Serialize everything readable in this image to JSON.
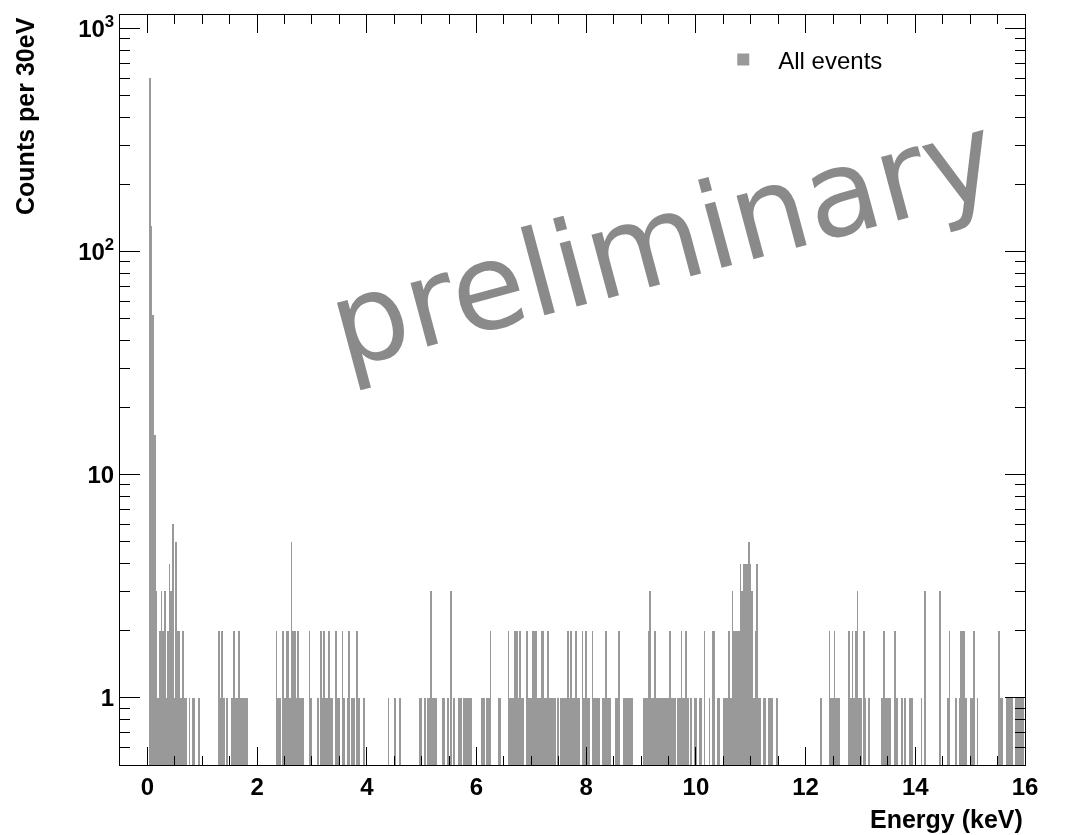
{
  "chart_data": {
    "type": "histogram",
    "xlabel": "Energy (keV)",
    "ylabel": "Counts per 30eV",
    "annotations": [
      "preliminary"
    ],
    "legend": "top right",
    "log": "y",
    "xlim": [
      -0.5,
      16
    ],
    "xticks": [
      0,
      2,
      4,
      6,
      8,
      10,
      12,
      14,
      16
    ],
    "ylim": [
      0.5,
      1150
    ],
    "yticks": [
      1,
      10,
      {
        "value": 100,
        "label": "10$^{2}$"
      },
      {
        "value": 1000,
        "label": "10$^{3}$"
      }
    ],
    "bins": [
      0,
      0.03,
      0.06,
      0.09,
      0.12,
      0.15,
      0.18,
      0.21,
      0.24,
      0.27,
      0.3,
      0.33,
      0.36,
      0.39,
      0.42,
      0.45,
      0.48,
      0.51,
      0.54,
      0.57,
      0.6,
      0.63,
      0.66,
      0.69,
      0.72,
      0.75,
      0.78,
      0.81,
      0.84,
      0.87,
      0.9,
      0.93,
      0.96,
      0.99,
      1.02,
      1.05,
      1.08,
      1.11,
      1.14,
      1.17,
      1.2,
      1.23,
      1.26,
      1.29,
      1.32,
      1.35,
      1.38,
      1.41,
      1.44,
      1.47,
      1.5,
      1.53,
      1.56,
      1.59,
      1.62,
      1.65,
      1.68,
      1.71,
      1.74,
      1.77,
      1.8,
      1.83,
      1.86,
      1.89,
      1.92,
      1.95,
      1.98,
      2.01,
      2.04,
      2.07,
      2.1,
      2.13,
      2.16,
      2.19,
      2.22,
      2.25,
      2.28,
      2.31,
      2.34,
      2.37,
      2.4,
      2.43,
      2.46,
      2.49,
      2.52,
      2.55,
      2.58,
      2.61,
      2.64,
      2.67,
      2.7,
      2.73,
      2.76,
      2.79,
      2.82,
      2.85,
      2.88,
      2.91,
      2.94,
      2.97,
      3.0,
      3.03,
      3.06,
      3.09,
      3.12,
      3.15,
      3.18,
      3.21,
      3.24,
      3.27,
      3.3,
      3.33,
      3.36,
      3.39,
      3.42,
      3.45,
      3.48,
      3.51,
      3.54,
      3.57,
      3.6,
      3.63,
      3.66,
      3.69,
      3.72,
      3.75,
      3.78,
      3.81,
      3.84,
      3.87,
      3.9,
      3.93,
      3.96,
      3.99,
      4.02,
      4.05,
      4.08,
      4.11,
      4.14,
      4.17,
      4.2,
      4.23,
      4.26,
      4.29,
      4.32,
      4.35,
      4.38,
      4.41,
      4.44,
      4.47,
      4.5,
      4.53,
      4.56,
      4.59,
      4.62,
      4.65,
      4.68,
      4.71,
      4.74,
      4.77,
      4.8,
      4.83,
      4.86,
      4.89,
      4.92,
      4.95,
      4.98,
      5.01,
      5.04,
      5.07,
      5.1,
      5.13,
      5.16,
      5.19,
      5.22,
      5.25,
      5.28,
      5.31,
      5.34,
      5.37,
      5.4,
      5.43,
      5.46,
      5.49,
      5.52,
      5.55,
      5.58,
      5.61,
      5.64,
      5.67,
      5.7,
      5.73,
      5.76,
      5.79,
      5.82,
      5.85,
      5.88,
      5.91,
      5.94,
      5.97,
      6.0,
      6.03,
      6.06,
      6.09,
      6.12,
      6.15,
      6.18,
      6.21,
      6.24,
      6.27,
      6.3,
      6.33,
      6.36,
      6.39,
      6.42,
      6.45,
      6.48,
      6.51,
      6.54,
      6.57,
      6.6,
      6.63,
      6.66,
      6.69,
      6.72,
      6.75,
      6.78,
      6.81,
      6.84,
      6.87,
      6.9,
      6.93,
      6.96,
      6.99,
      7.02,
      7.05,
      7.08,
      7.11,
      7.14,
      7.17,
      7.2,
      7.23,
      7.26,
      7.29,
      7.32,
      7.35,
      7.38,
      7.41,
      7.44,
      7.47,
      7.5,
      7.53,
      7.56,
      7.59,
      7.62,
      7.65,
      7.68,
      7.71,
      7.74,
      7.77,
      7.8,
      7.83,
      7.86,
      7.89,
      7.92,
      7.95,
      7.98,
      8.01,
      8.04,
      8.07,
      8.1,
      8.13,
      8.16,
      8.19,
      8.22,
      8.25,
      8.28,
      8.31,
      8.34,
      8.37,
      8.4,
      8.43,
      8.46,
      8.49,
      8.52,
      8.55,
      8.58,
      8.61,
      8.64,
      8.67,
      8.7,
      8.73,
      8.76,
      8.79,
      8.82,
      8.85,
      8.88,
      8.91,
      8.94,
      8.97,
      9.0,
      9.03,
      9.06,
      9.09,
      9.12,
      9.15,
      9.18,
      9.21,
      9.24,
      9.27,
      9.3,
      9.33,
      9.36,
      9.39,
      9.42,
      9.45,
      9.48,
      9.51,
      9.54,
      9.57,
      9.6,
      9.63,
      9.66,
      9.69,
      9.72,
      9.75,
      9.78,
      9.81,
      9.84,
      9.87,
      9.9,
      9.93,
      9.96,
      9.99,
      10.02,
      10.05,
      10.08,
      10.11,
      10.14,
      10.17,
      10.2,
      10.23,
      10.26,
      10.29,
      10.32,
      10.35,
      10.38,
      10.41,
      10.44,
      10.47,
      10.5,
      10.53,
      10.56,
      10.59,
      10.62,
      10.65,
      10.68,
      10.71,
      10.74,
      10.77,
      10.8,
      10.83,
      10.86,
      10.89,
      10.92,
      10.95,
      10.98,
      11.01,
      11.04,
      11.07,
      11.1,
      11.13,
      11.16,
      11.19,
      11.22,
      11.25,
      11.28,
      11.31,
      11.34,
      11.37,
      11.4,
      11.43,
      11.46,
      11.49,
      11.52,
      11.55,
      11.58,
      11.61,
      11.64,
      11.67,
      11.7,
      11.73,
      11.76,
      11.79,
      11.82,
      11.85,
      11.88,
      11.91,
      11.94,
      11.97,
      12.0,
      12.03,
      12.06,
      12.09,
      12.12,
      12.15,
      12.18,
      12.21,
      12.24,
      12.27,
      12.3,
      12.33,
      12.36,
      12.39,
      12.42,
      12.45,
      12.48,
      12.51,
      12.54,
      12.57,
      12.6,
      12.63,
      12.66,
      12.69,
      12.72,
      12.75,
      12.78,
      12.81,
      12.84,
      12.87,
      12.9,
      12.93,
      12.96,
      12.99,
      13.02,
      13.05,
      13.08,
      13.11,
      13.14,
      13.17,
      13.2,
      13.23,
      13.26,
      13.29,
      13.32,
      13.35,
      13.38,
      13.41,
      13.44,
      13.47,
      13.5,
      13.53,
      13.56,
      13.59,
      13.62,
      13.65,
      13.68,
      13.71,
      13.74,
      13.77,
      13.8,
      13.83,
      13.86,
      13.89,
      13.92,
      13.95,
      13.98,
      14.01,
      14.04,
      14.07,
      14.1,
      14.13,
      14.16,
      14.19,
      14.22,
      14.25,
      14.28,
      14.31,
      14.34,
      14.37,
      14.4,
      14.43,
      14.46,
      14.49,
      14.52,
      14.55,
      14.58,
      14.61,
      14.64,
      14.67,
      14.7,
      14.73,
      14.76,
      14.79,
      14.82,
      14.85,
      14.88,
      14.91,
      14.94,
      14.97,
      15.0,
      15.03,
      15.06,
      15.09,
      15.12,
      15.15,
      15.18,
      15.21,
      15.24,
      15.27,
      15.3,
      15.33,
      15.36,
      15.39,
      15.42,
      15.45,
      15.48,
      15.51,
      15.54,
      15.57,
      15.6,
      15.63,
      15.66,
      15.69,
      15.72,
      15.75,
      15.78,
      15.81,
      15.84,
      15.87,
      15.9,
      15.93,
      15.96,
      15.99
    ],
    "series": [
      {
        "name": "All events",
        "color": "#999999",
        "values": [
          null,
          600,
          130,
          52,
          15,
          3,
          1,
          2,
          3,
          2,
          3,
          1,
          2,
          4,
          3,
          6,
          1,
          5,
          2,
          2,
          1,
          2,
          1,
          1,
          null,
          1,
          null,
          1,
          1,
          null,
          null,
          1,
          null,
          null,
          null,
          null,
          null,
          null,
          null,
          null,
          null,
          null,
          null,
          2,
          1,
          2,
          1,
          null,
          1,
          null,
          null,
          1,
          2,
          1,
          1,
          2,
          1,
          1,
          1,
          1,
          1,
          null,
          null,
          null,
          null,
          null,
          null,
          null,
          null,
          null,
          null,
          null,
          null,
          null,
          null,
          null,
          null,
          null,
          2,
          1,
          1,
          null,
          2,
          1,
          2,
          2,
          1,
          5,
          2,
          2,
          1,
          2,
          1,
          1,
          1,
          null,
          null,
          null,
          2,
          1,
          null,
          null,
          null,
          1,
          null,
          2,
          1,
          2,
          1,
          1,
          2,
          1,
          1,
          null,
          2,
          1,
          1,
          null,
          2,
          1,
          null,
          1,
          2,
          null,
          1,
          1,
          null,
          2,
          1,
          null,
          null,
          1,
          null,
          null,
          null,
          null,
          null,
          null,
          null,
          null,
          null,
          null,
          null,
          null,
          null,
          null,
          1,
          null,
          null,
          null,
          1,
          null,
          null,
          1,
          null,
          null,
          null,
          null,
          null,
          null,
          null,
          null,
          null,
          null,
          null,
          1,
          1,
          null,
          1,
          null,
          1,
          1,
          3,
          1,
          1,
          1,
          null,
          null,
          null,
          1,
          1,
          null,
          1,
          null,
          3,
          null,
          1,
          null,
          null,
          1,
          1,
          null,
          1,
          1,
          1,
          1,
          1,
          null,
          null,
          null,
          null,
          null,
          null,
          1,
          1,
          null,
          1,
          1,
          2,
          null,
          null,
          null,
          null,
          1,
          1,
          null,
          null,
          null,
          null,
          2,
          1,
          1,
          1,
          2,
          2,
          1,
          2,
          1,
          1,
          null,
          2,
          1,
          1,
          1,
          2,
          2,
          2,
          1,
          1,
          2,
          2,
          1,
          1,
          2,
          1,
          1,
          1,
          1,
          null,
          1,
          null,
          1,
          1,
          1,
          1,
          2,
          1,
          2,
          1,
          1,
          2,
          1,
          1,
          null,
          2,
          1,
          2,
          1,
          1,
          null,
          2,
          1,
          1,
          1,
          1,
          null,
          1,
          1,
          2,
          1,
          1,
          1,
          null,
          null,
          1,
          1,
          2,
          null,
          null,
          1,
          1,
          1,
          1,
          1,
          1,
          null,
          null,
          null,
          null,
          null,
          null,
          1,
          1,
          1,
          2,
          3,
          1,
          1,
          2,
          1,
          1,
          1,
          1,
          1,
          1,
          1,
          1,
          2,
          1,
          1,
          1,
          null,
          1,
          1,
          2,
          1,
          1,
          2,
          1,
          null,
          1,
          null,
          1,
          1,
          null,
          1,
          1,
          null,
          2,
          null,
          null,
          1,
          null,
          2,
          2,
          null,
          1,
          1,
          null,
          null,
          1,
          1,
          1,
          2,
          1,
          3,
          2,
          2,
          2,
          2,
          4,
          3,
          4,
          4,
          4,
          5,
          4,
          3,
          1,
          2,
          4,
          1,
          1,
          null,
          1,
          1,
          null,
          1,
          1,
          1,
          null,
          null,
          1,
          null,
          null,
          null,
          null,
          null,
          null,
          null,
          null,
          null,
          null,
          null,
          null,
          null,
          null,
          null,
          null,
          null,
          null,
          null,
          null,
          null,
          null,
          null,
          null,
          null,
          null,
          1,
          null,
          null,
          null,
          null,
          2,
          1,
          1,
          2,
          1,
          1,
          1,
          null,
          null,
          null,
          null,
          null,
          2,
          1,
          2,
          1,
          2,
          3,
          1,
          1,
          null,
          2,
          1,
          null,
          1,
          null,
          null,
          null,
          null,
          null,
          null,
          null,
          1,
          2,
          1,
          1,
          1,
          1,
          null,
          null,
          2,
          1,
          null,
          null,
          1,
          null,
          1,
          null,
          null,
          1,
          1,
          null,
          null,
          null,
          null,
          null,
          1,
          null,
          3,
          null,
          null,
          null,
          null,
          null,
          null,
          null,
          null,
          3,
          null,
          null,
          null,
          null,
          1,
          2,
          null,
          null,
          null,
          1,
          null,
          1,
          2,
          2,
          2,
          1,
          null,
          null,
          1,
          1,
          2,
          null,
          1,
          null,
          null,
          null,
          null,
          null,
          null,
          null,
          null,
          null,
          null,
          null,
          null,
          2,
          1,
          1,
          null,
          null,
          1,
          1,
          1,
          1,
          null,
          1,
          1,
          1,
          1,
          1,
          1
        ]
      }
    ]
  }
}
